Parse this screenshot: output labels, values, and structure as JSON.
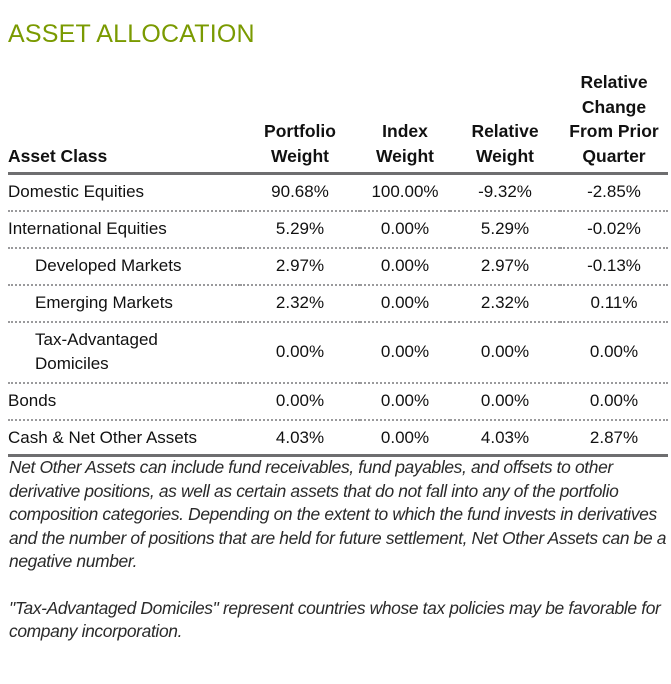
{
  "title": "ASSET ALLOCATION",
  "colors": {
    "title": "#7a9a01",
    "rule": "#6e6e70",
    "divider": "#9a9a9c"
  },
  "table": {
    "headers": {
      "asset_class": "Asset Class",
      "portfolio_weight": "Portfolio Weight",
      "index_weight": "Index Weight",
      "relative_weight": "Relative Weight",
      "relative_change": "Relative Change From Prior Quarter"
    },
    "header_lines": {
      "portfolio_weight": [
        "Portfolio",
        "Weight"
      ],
      "index_weight": [
        "Index",
        "Weight"
      ],
      "relative_weight": [
        "Relative",
        "Weight"
      ],
      "relative_change": [
        "Relative",
        "Change",
        "From Prior",
        "Quarter"
      ]
    },
    "rows": [
      {
        "asset_class": "Domestic Equities",
        "indent": false,
        "portfolio_weight": "90.68%",
        "index_weight": "100.00%",
        "relative_weight": "-9.32%",
        "relative_change": "-2.85%"
      },
      {
        "asset_class": "International Equities",
        "indent": false,
        "portfolio_weight": "5.29%",
        "index_weight": "0.00%",
        "relative_weight": "5.29%",
        "relative_change": "-0.02%"
      },
      {
        "asset_class": "Developed Markets",
        "indent": true,
        "portfolio_weight": "2.97%",
        "index_weight": "0.00%",
        "relative_weight": "2.97%",
        "relative_change": "-0.13%"
      },
      {
        "asset_class": "Emerging Markets",
        "indent": true,
        "portfolio_weight": "2.32%",
        "index_weight": "0.00%",
        "relative_weight": "2.32%",
        "relative_change": "0.11%"
      },
      {
        "asset_class": "Tax-Advantaged Domiciles",
        "asset_class_lines": [
          "Tax-Advantaged",
          "Domiciles"
        ],
        "indent": true,
        "portfolio_weight": "0.00%",
        "index_weight": "0.00%",
        "relative_weight": "0.00%",
        "relative_change": "0.00%"
      },
      {
        "asset_class": "Bonds",
        "indent": false,
        "portfolio_weight": "0.00%",
        "index_weight": "0.00%",
        "relative_weight": "0.00%",
        "relative_change": "0.00%"
      },
      {
        "asset_class": "Cash & Net Other Assets",
        "indent": false,
        "portfolio_weight": "4.03%",
        "index_weight": "0.00%",
        "relative_weight": "4.03%",
        "relative_change": "2.87%"
      }
    ]
  },
  "notes": [
    "Net Other Assets can include fund receivables, fund payables, and offsets to other derivative positions, as well as certain assets that do not fall into any of the portfolio composition categories. Depending on the extent to which the fund invests in derivatives and the number of positions that are held for future settlement, Net Other Assets can be a negative number.",
    "\"Tax-Advantaged Domiciles\" represent countries whose tax policies may be favorable for company incorporation."
  ]
}
